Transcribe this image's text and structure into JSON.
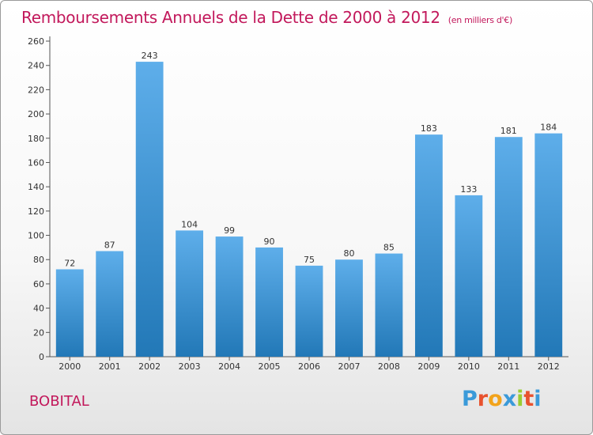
{
  "header": {
    "title": "Remboursements Annuels de la Dette de 2000 à 2012",
    "subtitle": "(en milliers d'€)"
  },
  "commune": "BOBITAL",
  "logo": {
    "text": "Proxiti",
    "letters": [
      {
        "char": "P",
        "color": "#3a9ad9"
      },
      {
        "char": "r",
        "color": "#e8522e"
      },
      {
        "char": "o",
        "color": "#f2a31b"
      },
      {
        "char": "x",
        "color": "#3a9ad9"
      },
      {
        "char": "i",
        "color": "#9acd32"
      },
      {
        "char": "t",
        "color": "#e8522e"
      },
      {
        "char": "i",
        "color": "#3a9ad9"
      }
    ]
  },
  "colors": {
    "title": "#c2185b",
    "bar_top": "#5eaeea",
    "bar_bottom": "#2278b7"
  },
  "chart_data": {
    "type": "bar",
    "title": "Remboursements Annuels de la Dette de 2000 à 2012",
    "subtitle": "(en milliers d'€)",
    "categories": [
      "2000",
      "2001",
      "2002",
      "2003",
      "2004",
      "2005",
      "2006",
      "2007",
      "2008",
      "2009",
      "2010",
      "2011",
      "2012"
    ],
    "values": [
      72,
      87,
      243,
      104,
      99,
      90,
      75,
      80,
      85,
      183,
      133,
      181,
      184
    ],
    "ylim": [
      0,
      260
    ],
    "yticks": [
      0,
      20,
      40,
      60,
      80,
      100,
      120,
      140,
      160,
      180,
      200,
      220,
      240,
      260
    ],
    "grid": false,
    "data_labels": true
  }
}
